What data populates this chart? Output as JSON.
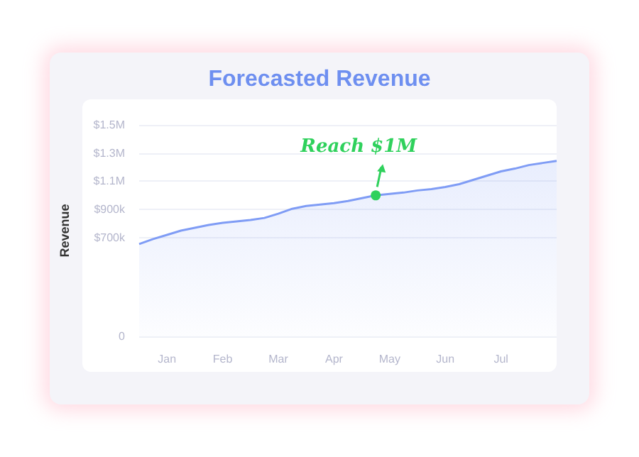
{
  "chart_data": {
    "type": "area",
    "title": "Forecasted Revenue",
    "ylabel": "Revenue",
    "categories": [
      null,
      null,
      "Jan",
      null,
      null,
      null,
      "Feb",
      null,
      null,
      null,
      "Mar",
      null,
      null,
      null,
      "Apr",
      null,
      null,
      null,
      "May",
      null,
      null,
      null,
      "Jun",
      null,
      null,
      null,
      "Jul",
      null,
      null,
      null,
      null
    ],
    "series": [
      {
        "color": "#7f9cf5",
        "values": [
          655000,
          690000,
          720000,
          750000,
          770000,
          790000,
          805000,
          815000,
          825000,
          840000,
          870000,
          905000,
          925000,
          935000,
          945000,
          960000,
          980000,
          1000000,
          1010000,
          1020000,
          1035000,
          1045000,
          1060000,
          1080000,
          1110000,
          1140000,
          1170000,
          1190000,
          1215000,
          1230000,
          1245000
        ]
      }
    ],
    "ylim": [
      0,
      1500000
    ],
    "yticks": [
      0,
      {
        "value": 700000,
        "label": "$700k"
      },
      {
        "value": 900000,
        "label": "$900k"
      },
      {
        "value": 1100000,
        "label": "$1.1M"
      },
      {
        "value": 1300000,
        "label": "$1.3M"
      },
      {
        "value": 1500000,
        "label": "$1.5M"
      }
    ],
    "annotations": [
      {
        "text": "Reach $1M",
        "y": 1000000
      }
    ],
    "grid": "y",
    "marker": "none",
    "line_style": "solid"
  }
}
